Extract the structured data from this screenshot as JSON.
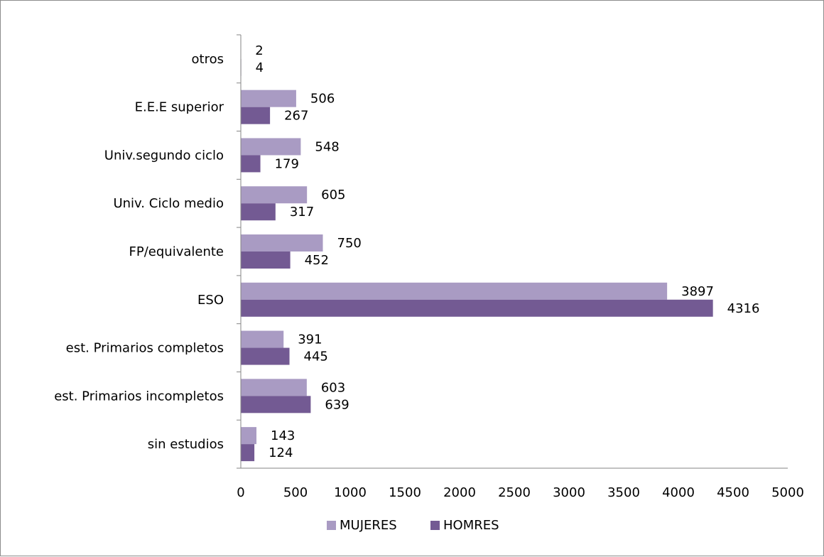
{
  "chart_data": {
    "type": "bar",
    "orientation": "horizontal",
    "categories": [
      "sin estudios",
      "est. Primarios incompletos",
      "est. Primarios completos",
      "ESO",
      "FP/equivalente",
      "Univ. Ciclo medio",
      "Univ.segundo ciclo",
      "E.E.E superior",
      "otros"
    ],
    "series": [
      {
        "name": "MUJERES",
        "values": [
          143,
          603,
          391,
          3897,
          750,
          605,
          548,
          506,
          2
        ],
        "color": "#a99bc3"
      },
      {
        "name": "HOMRES",
        "values": [
          124,
          639,
          445,
          4316,
          452,
          317,
          179,
          267,
          4
        ],
        "color": "#735a93"
      }
    ],
    "xlim": [
      0,
      5000
    ],
    "xticks": [
      0,
      500,
      1000,
      1500,
      2000,
      2500,
      3000,
      3500,
      4000,
      4500,
      5000
    ],
    "grid": false,
    "legend": "bottom",
    "data_labels": true
  }
}
